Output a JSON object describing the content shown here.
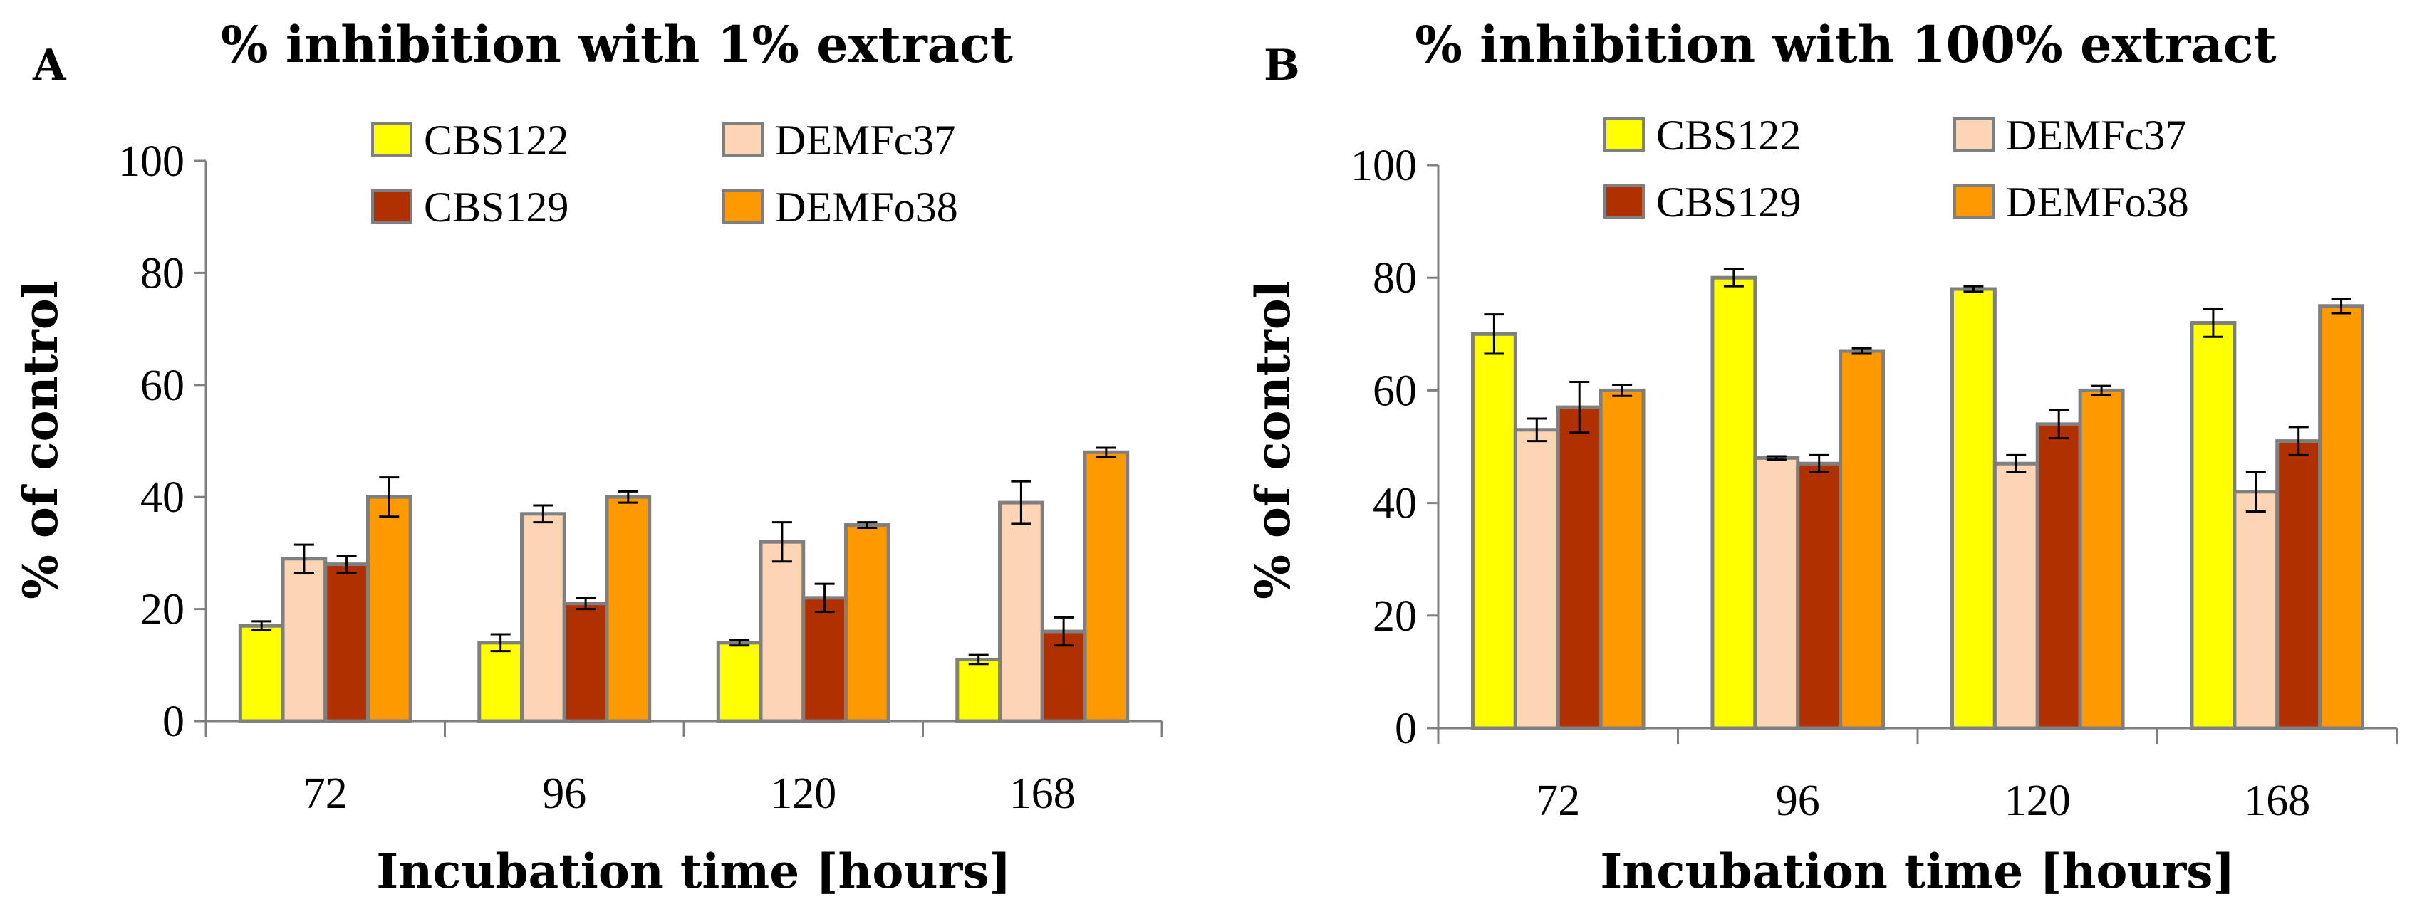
{
  "chart_data": [
    {
      "type": "bar",
      "panel": "A",
      "title": "% inhibition with 1% extract",
      "xlabel": "Incubation time [hours]",
      "ylabel": "% of control",
      "ylim": [
        0,
        100
      ],
      "yticks": [
        0,
        20,
        40,
        60,
        80,
        100
      ],
      "categories": [
        "72",
        "96",
        "120",
        "168"
      ],
      "series": [
        {
          "name": "CBS122",
          "color": "#ffff00",
          "values": [
            17,
            14,
            14,
            11
          ],
          "errors": [
            0.8,
            1.5,
            0.5,
            0.8
          ]
        },
        {
          "name": "DEMFc37",
          "color": "#fcd5b5",
          "values": [
            29,
            37,
            32,
            39
          ],
          "errors": [
            2.5,
            1.5,
            3.5,
            3.8
          ]
        },
        {
          "name": "CBS129",
          "color": "#b13000",
          "values": [
            28,
            21,
            22,
            16
          ],
          "errors": [
            1.5,
            1,
            2.5,
            2.5
          ]
        },
        {
          "name": "DEMFo38",
          "color": "#ff9900",
          "values": [
            40,
            40,
            35,
            48
          ],
          "errors": [
            3.5,
            1,
            0.5,
            0.8
          ]
        }
      ]
    },
    {
      "type": "bar",
      "panel": "B",
      "title": "% inhibition with 100% extract",
      "xlabel": "Incubation time [hours]",
      "ylabel": "% of control",
      "ylim": [
        0,
        100
      ],
      "yticks": [
        0,
        20,
        40,
        60,
        80,
        100
      ],
      "categories": [
        "72",
        "96",
        "120",
        "168"
      ],
      "series": [
        {
          "name": "CBS122",
          "color": "#ffff00",
          "values": [
            70,
            80,
            78,
            72
          ],
          "errors": [
            3.5,
            1.5,
            0.5,
            2.5
          ]
        },
        {
          "name": "DEMFc37",
          "color": "#fcd5b5",
          "values": [
            53,
            48,
            47,
            42
          ],
          "errors": [
            2,
            0.3,
            1.5,
            3.5
          ]
        },
        {
          "name": "CBS129",
          "color": "#b13000",
          "values": [
            57,
            47,
            54,
            51
          ],
          "errors": [
            4.5,
            1.5,
            2.5,
            2.5
          ]
        },
        {
          "name": "DEMFo38",
          "color": "#ff9900",
          "values": [
            60,
            67,
            60,
            75
          ],
          "errors": [
            1,
            0.5,
            0.8,
            1.3
          ]
        }
      ]
    }
  ]
}
